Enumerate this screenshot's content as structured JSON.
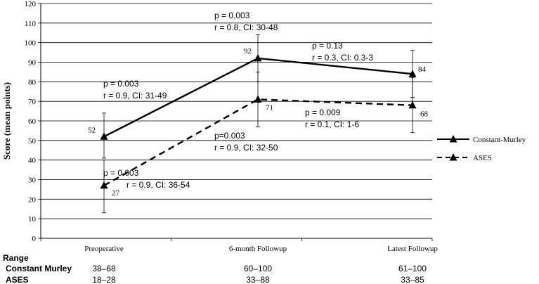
{
  "chart_data": {
    "type": "line",
    "ylabel": "Score (mean points)",
    "ylim": [
      0,
      120
    ],
    "yticks": [
      0,
      10,
      20,
      30,
      40,
      50,
      60,
      70,
      80,
      90,
      100,
      110,
      120
    ],
    "categories": [
      "Preoperative",
      "6-month Followup",
      "Latest Followup"
    ],
    "grid": true,
    "legend_position": "right",
    "series": [
      {
        "name": "Constant-Murley",
        "values": [
          52,
          92,
          84
        ],
        "error_low": [
          41,
          80,
          72
        ],
        "error_high": [
          64,
          104,
          96
        ],
        "line_style": "solid",
        "marker": "triangle",
        "color": "#000000"
      },
      {
        "name": "ASES",
        "values": [
          27,
          71,
          68
        ],
        "error_low": [
          13,
          57,
          54
        ],
        "error_high": [
          40,
          85,
          82
        ],
        "line_style": "dashed",
        "marker": "triangle",
        "color": "#000000"
      }
    ],
    "annotations": [
      {
        "lines": [
          "p = 0.003",
          "r = 0.9, CI: 31-49"
        ]
      },
      {
        "lines": [
          "p = 0.003",
          "r = 0.8, CI: 30-48"
        ]
      },
      {
        "lines": [
          "p = 0.13",
          "r = 0.3, CI: 0.3-3"
        ]
      },
      {
        "lines": [
          "p = 0.003",
          "r = 0.9, CI: 36-54"
        ]
      },
      {
        "lines": [
          "p=0.003",
          "r = 0.9, CI: 32-50"
        ]
      },
      {
        "lines": [
          "p = 0.009",
          "r = 0.1, CI: 1-6"
        ]
      }
    ],
    "range_table": {
      "header": "Range",
      "rows": [
        {
          "label": "Constant Murley",
          "values": [
            "38–68",
            "60–100",
            "61–100"
          ]
        },
        {
          "label": "ASES",
          "values": [
            "18–28",
            "33–88",
            "33–85"
          ]
        }
      ]
    }
  }
}
